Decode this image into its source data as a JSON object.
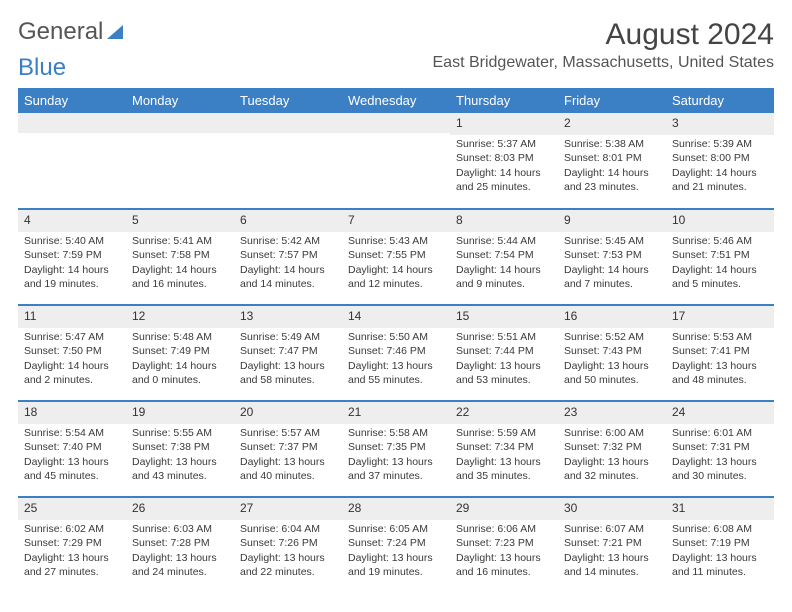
{
  "brand": {
    "part1": "General",
    "part2": "Blue"
  },
  "title": "August 2024",
  "location": "East Bridgewater, Massachusetts, United States",
  "colors": {
    "accent": "#3b7fc4",
    "daynum_bg": "#eeeeee",
    "text": "#3a3a3a",
    "header_text": "#ffffff",
    "background": "#ffffff"
  },
  "weekdays": [
    "Sunday",
    "Monday",
    "Tuesday",
    "Wednesday",
    "Thursday",
    "Friday",
    "Saturday"
  ],
  "weeks": [
    [
      {
        "day": "",
        "sunrise": "",
        "sunset": "",
        "daylight": ""
      },
      {
        "day": "",
        "sunrise": "",
        "sunset": "",
        "daylight": ""
      },
      {
        "day": "",
        "sunrise": "",
        "sunset": "",
        "daylight": ""
      },
      {
        "day": "",
        "sunrise": "",
        "sunset": "",
        "daylight": ""
      },
      {
        "day": "1",
        "sunrise": "Sunrise: 5:37 AM",
        "sunset": "Sunset: 8:03 PM",
        "daylight": "Daylight: 14 hours and 25 minutes."
      },
      {
        "day": "2",
        "sunrise": "Sunrise: 5:38 AM",
        "sunset": "Sunset: 8:01 PM",
        "daylight": "Daylight: 14 hours and 23 minutes."
      },
      {
        "day": "3",
        "sunrise": "Sunrise: 5:39 AM",
        "sunset": "Sunset: 8:00 PM",
        "daylight": "Daylight: 14 hours and 21 minutes."
      }
    ],
    [
      {
        "day": "4",
        "sunrise": "Sunrise: 5:40 AM",
        "sunset": "Sunset: 7:59 PM",
        "daylight": "Daylight: 14 hours and 19 minutes."
      },
      {
        "day": "5",
        "sunrise": "Sunrise: 5:41 AM",
        "sunset": "Sunset: 7:58 PM",
        "daylight": "Daylight: 14 hours and 16 minutes."
      },
      {
        "day": "6",
        "sunrise": "Sunrise: 5:42 AM",
        "sunset": "Sunset: 7:57 PM",
        "daylight": "Daylight: 14 hours and 14 minutes."
      },
      {
        "day": "7",
        "sunrise": "Sunrise: 5:43 AM",
        "sunset": "Sunset: 7:55 PM",
        "daylight": "Daylight: 14 hours and 12 minutes."
      },
      {
        "day": "8",
        "sunrise": "Sunrise: 5:44 AM",
        "sunset": "Sunset: 7:54 PM",
        "daylight": "Daylight: 14 hours and 9 minutes."
      },
      {
        "day": "9",
        "sunrise": "Sunrise: 5:45 AM",
        "sunset": "Sunset: 7:53 PM",
        "daylight": "Daylight: 14 hours and 7 minutes."
      },
      {
        "day": "10",
        "sunrise": "Sunrise: 5:46 AM",
        "sunset": "Sunset: 7:51 PM",
        "daylight": "Daylight: 14 hours and 5 minutes."
      }
    ],
    [
      {
        "day": "11",
        "sunrise": "Sunrise: 5:47 AM",
        "sunset": "Sunset: 7:50 PM",
        "daylight": "Daylight: 14 hours and 2 minutes."
      },
      {
        "day": "12",
        "sunrise": "Sunrise: 5:48 AM",
        "sunset": "Sunset: 7:49 PM",
        "daylight": "Daylight: 14 hours and 0 minutes."
      },
      {
        "day": "13",
        "sunrise": "Sunrise: 5:49 AM",
        "sunset": "Sunset: 7:47 PM",
        "daylight": "Daylight: 13 hours and 58 minutes."
      },
      {
        "day": "14",
        "sunrise": "Sunrise: 5:50 AM",
        "sunset": "Sunset: 7:46 PM",
        "daylight": "Daylight: 13 hours and 55 minutes."
      },
      {
        "day": "15",
        "sunrise": "Sunrise: 5:51 AM",
        "sunset": "Sunset: 7:44 PM",
        "daylight": "Daylight: 13 hours and 53 minutes."
      },
      {
        "day": "16",
        "sunrise": "Sunrise: 5:52 AM",
        "sunset": "Sunset: 7:43 PM",
        "daylight": "Daylight: 13 hours and 50 minutes."
      },
      {
        "day": "17",
        "sunrise": "Sunrise: 5:53 AM",
        "sunset": "Sunset: 7:41 PM",
        "daylight": "Daylight: 13 hours and 48 minutes."
      }
    ],
    [
      {
        "day": "18",
        "sunrise": "Sunrise: 5:54 AM",
        "sunset": "Sunset: 7:40 PM",
        "daylight": "Daylight: 13 hours and 45 minutes."
      },
      {
        "day": "19",
        "sunrise": "Sunrise: 5:55 AM",
        "sunset": "Sunset: 7:38 PM",
        "daylight": "Daylight: 13 hours and 43 minutes."
      },
      {
        "day": "20",
        "sunrise": "Sunrise: 5:57 AM",
        "sunset": "Sunset: 7:37 PM",
        "daylight": "Daylight: 13 hours and 40 minutes."
      },
      {
        "day": "21",
        "sunrise": "Sunrise: 5:58 AM",
        "sunset": "Sunset: 7:35 PM",
        "daylight": "Daylight: 13 hours and 37 minutes."
      },
      {
        "day": "22",
        "sunrise": "Sunrise: 5:59 AM",
        "sunset": "Sunset: 7:34 PM",
        "daylight": "Daylight: 13 hours and 35 minutes."
      },
      {
        "day": "23",
        "sunrise": "Sunrise: 6:00 AM",
        "sunset": "Sunset: 7:32 PM",
        "daylight": "Daylight: 13 hours and 32 minutes."
      },
      {
        "day": "24",
        "sunrise": "Sunrise: 6:01 AM",
        "sunset": "Sunset: 7:31 PM",
        "daylight": "Daylight: 13 hours and 30 minutes."
      }
    ],
    [
      {
        "day": "25",
        "sunrise": "Sunrise: 6:02 AM",
        "sunset": "Sunset: 7:29 PM",
        "daylight": "Daylight: 13 hours and 27 minutes."
      },
      {
        "day": "26",
        "sunrise": "Sunrise: 6:03 AM",
        "sunset": "Sunset: 7:28 PM",
        "daylight": "Daylight: 13 hours and 24 minutes."
      },
      {
        "day": "27",
        "sunrise": "Sunrise: 6:04 AM",
        "sunset": "Sunset: 7:26 PM",
        "daylight": "Daylight: 13 hours and 22 minutes."
      },
      {
        "day": "28",
        "sunrise": "Sunrise: 6:05 AM",
        "sunset": "Sunset: 7:24 PM",
        "daylight": "Daylight: 13 hours and 19 minutes."
      },
      {
        "day": "29",
        "sunrise": "Sunrise: 6:06 AM",
        "sunset": "Sunset: 7:23 PM",
        "daylight": "Daylight: 13 hours and 16 minutes."
      },
      {
        "day": "30",
        "sunrise": "Sunrise: 6:07 AM",
        "sunset": "Sunset: 7:21 PM",
        "daylight": "Daylight: 13 hours and 14 minutes."
      },
      {
        "day": "31",
        "sunrise": "Sunrise: 6:08 AM",
        "sunset": "Sunset: 7:19 PM",
        "daylight": "Daylight: 13 hours and 11 minutes."
      }
    ]
  ]
}
